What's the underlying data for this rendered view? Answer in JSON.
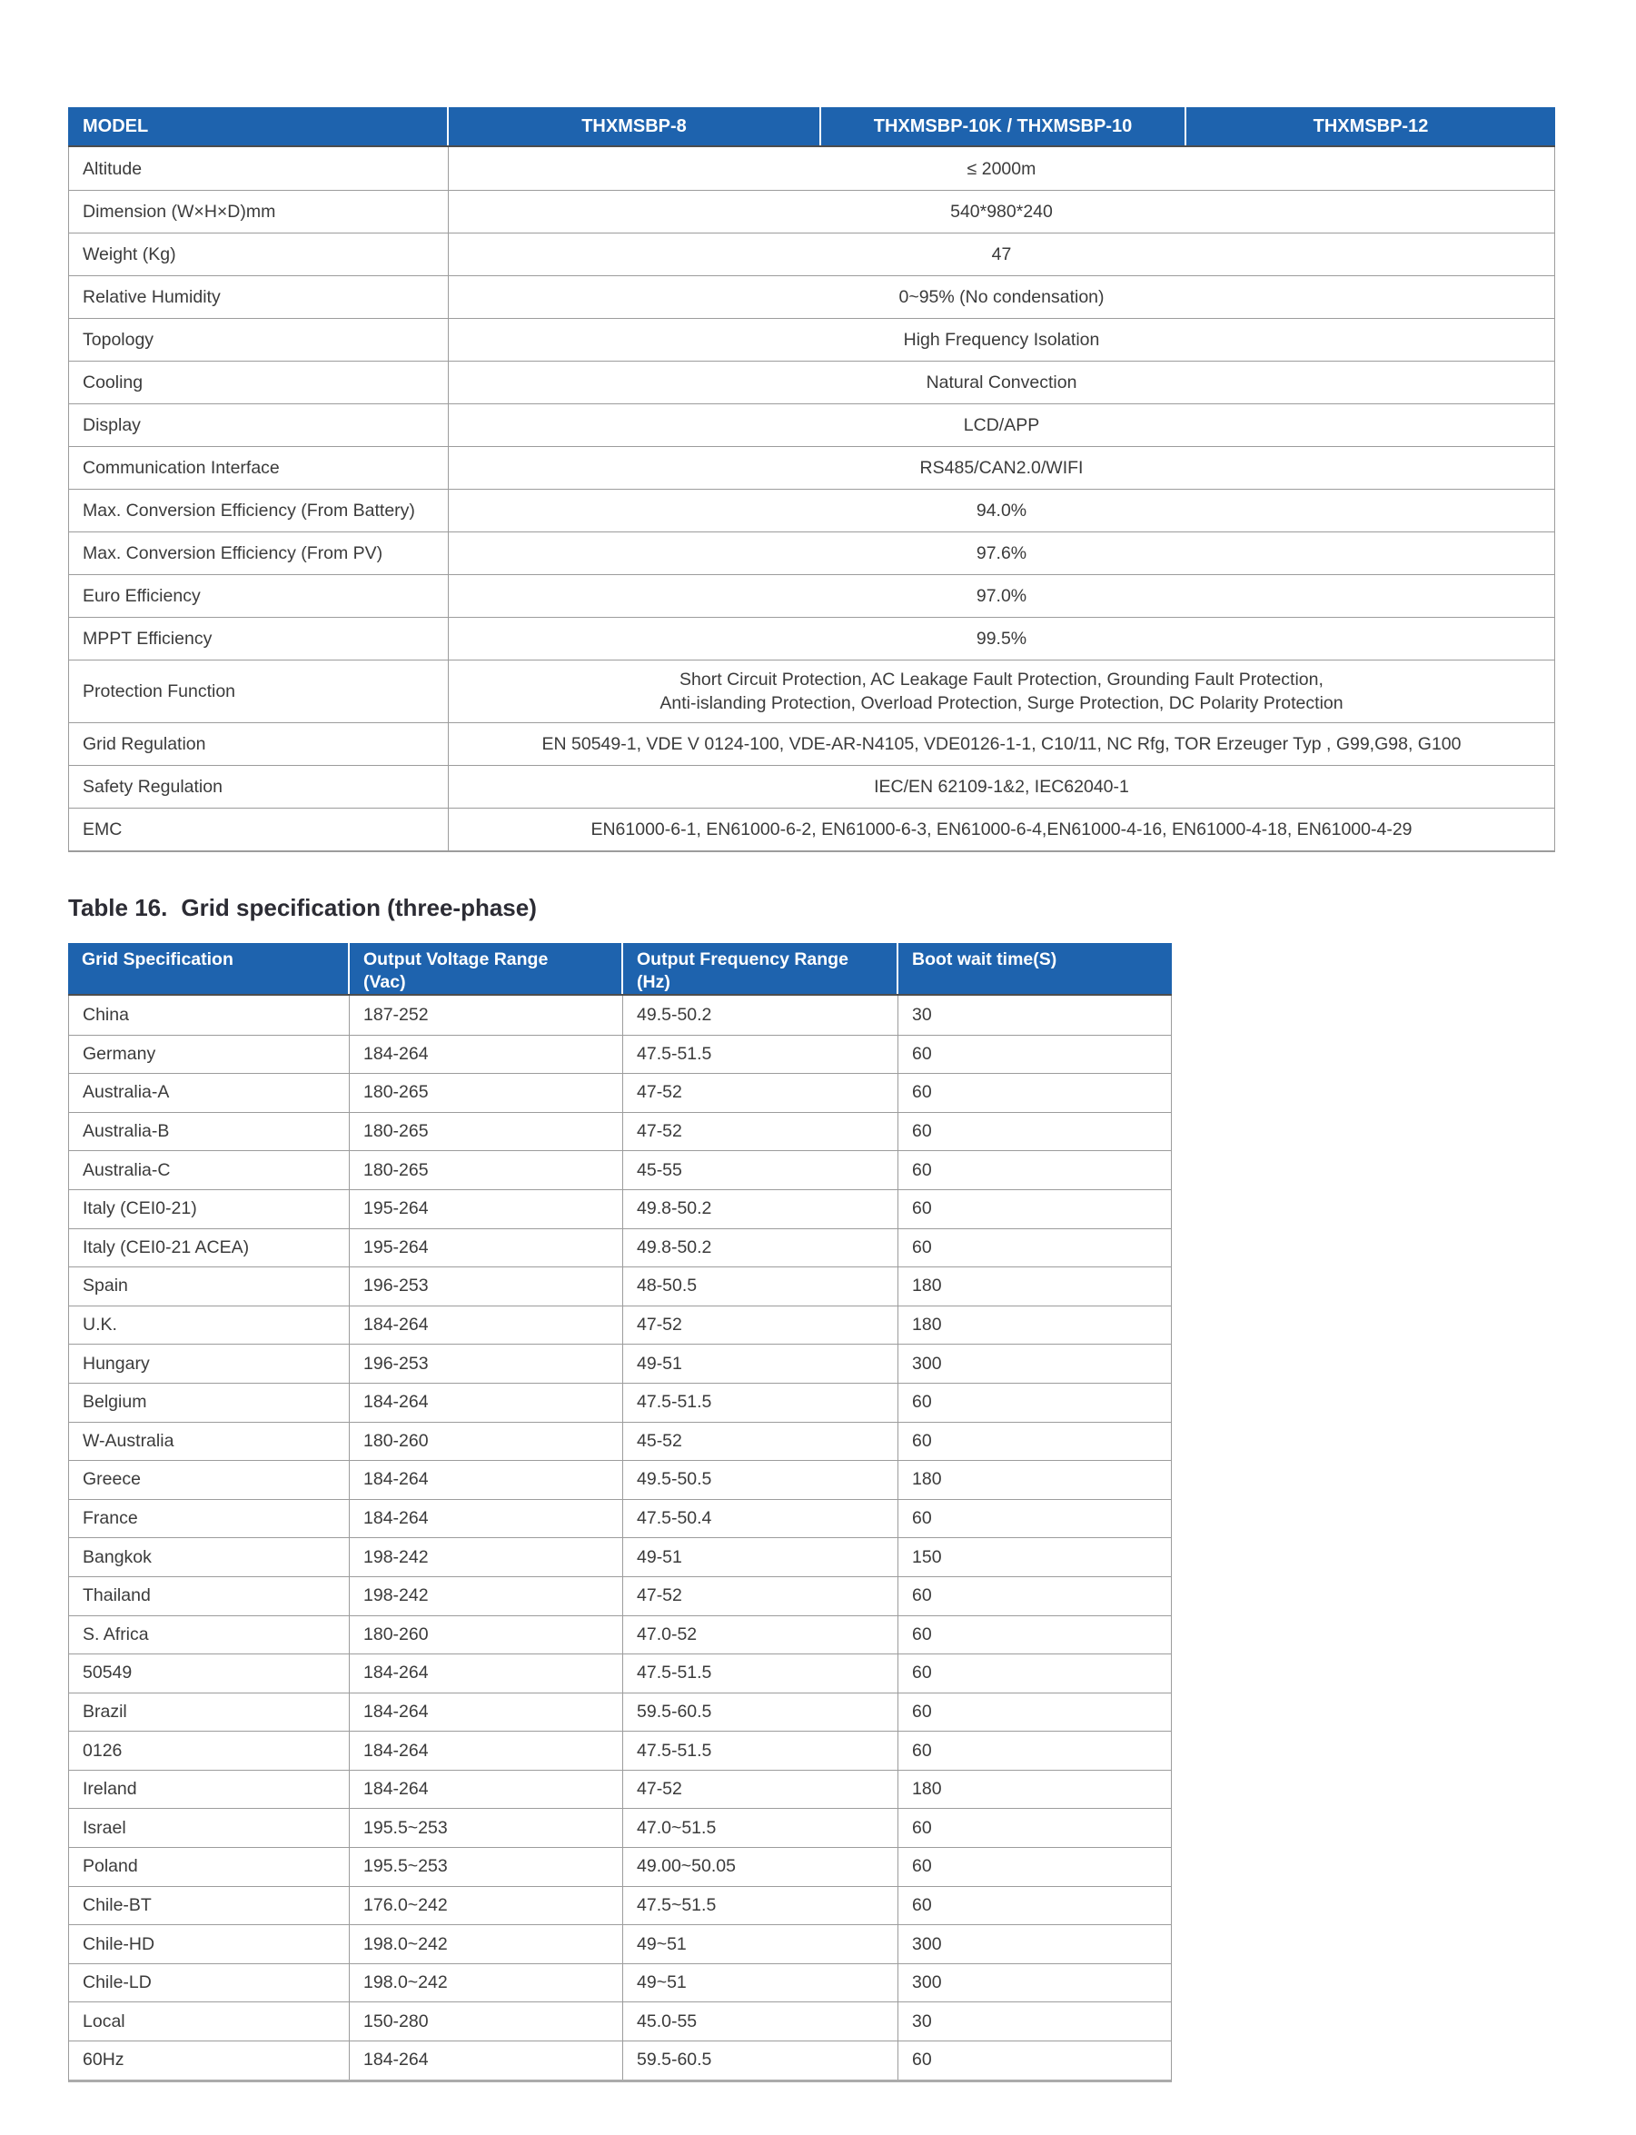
{
  "spec_table": {
    "headers": [
      "MODEL",
      "THXMSBP-8",
      "THXMSBP-10K / THXMSBP-10",
      "THXMSBP-12"
    ],
    "rows": [
      {
        "label": "Altitude",
        "value": "≤ 2000m"
      },
      {
        "label": "Dimension (W×H×D)mm",
        "value": "540*980*240"
      },
      {
        "label": "Weight (Kg)",
        "value": "47"
      },
      {
        "label": "Relative Humidity",
        "value": "0~95% (No condensation)"
      },
      {
        "label": "Topology",
        "value": "High Frequency Isolation"
      },
      {
        "label": "Cooling",
        "value": "Natural Convection"
      },
      {
        "label": "Display",
        "value": "LCD/APP"
      },
      {
        "label": "Communication Interface",
        "value": "RS485/CAN2.0/WIFI"
      },
      {
        "label": "Max. Conversion Efficiency (From Battery)",
        "value": "94.0%"
      },
      {
        "label": "Max. Conversion Efficiency (From PV)",
        "value": "97.6%"
      },
      {
        "label": "Euro Efficiency",
        "value": "97.0%"
      },
      {
        "label": "MPPT Efficiency",
        "value": "99.5%"
      },
      {
        "label": "Protection Function",
        "value": "Short Circuit Protection, AC Leakage Fault Protection, Grounding Fault Protection,\nAnti-islanding Protection, Overload Protection, Surge Protection, DC Polarity Protection"
      },
      {
        "label": "Grid Regulation",
        "value": "EN 50549-1, VDE V 0124-100, VDE-AR-N4105, VDE0126-1-1, C10/11, NC Rfg, TOR Erzeuger Typ , G99,G98, G100"
      },
      {
        "label": "Safety Regulation",
        "value": "IEC/EN 62109-1&2, IEC62040-1"
      },
      {
        "label": "EMC",
        "value": "EN61000-6-1, EN61000-6-2, EN61000-6-3, EN61000-6-4,EN61000-4-16, EN61000-4-18, EN61000-4-29"
      }
    ]
  },
  "grid_table": {
    "caption_label": "Table 16.",
    "caption_title": "Grid specification (three-phase)",
    "headers": [
      "Grid Specification",
      "Output Voltage Range\n(Vac)",
      "Output Frequency Range\n(Hz)",
      "Boot wait time(S)"
    ],
    "rows": [
      [
        "China",
        "187-252",
        "49.5-50.2",
        "30"
      ],
      [
        "Germany",
        "184-264",
        "47.5-51.5",
        "60"
      ],
      [
        "Australia-A",
        "180-265",
        "47-52",
        "60"
      ],
      [
        "Australia-B",
        "180-265",
        "47-52",
        "60"
      ],
      [
        "Australia-C",
        "180-265",
        "45-55",
        "60"
      ],
      [
        "Italy (CEI0-21)",
        "195-264",
        "49.8-50.2",
        "60"
      ],
      [
        "Italy (CEI0-21 ACEA)",
        "195-264",
        "49.8-50.2",
        "60"
      ],
      [
        "Spain",
        "196-253",
        "48-50.5",
        "180"
      ],
      [
        "U.K.",
        "184-264",
        "47-52",
        "180"
      ],
      [
        "Hungary",
        "196-253",
        "49-51",
        "300"
      ],
      [
        "Belgium",
        "184-264",
        "47.5-51.5",
        "60"
      ],
      [
        "W-Australia",
        "180-260",
        "45-52",
        "60"
      ],
      [
        "Greece",
        "184-264",
        "49.5-50.5",
        "180"
      ],
      [
        "France",
        "184-264",
        "47.5-50.4",
        "60"
      ],
      [
        "Bangkok",
        "198-242",
        "49-51",
        "150"
      ],
      [
        "Thailand",
        "198-242",
        "47-52",
        "60"
      ],
      [
        "S. Africa",
        "180-260",
        "47.0-52",
        "60"
      ],
      [
        "50549",
        "184-264",
        "47.5-51.5",
        "60"
      ],
      [
        "Brazil",
        "184-264",
        "59.5-60.5",
        "60"
      ],
      [
        "0126",
        "184-264",
        "47.5-51.5",
        "60"
      ],
      [
        "Ireland",
        "184-264",
        "47-52",
        "180"
      ],
      [
        "Israel",
        "195.5~253",
        "47.0~51.5",
        "60"
      ],
      [
        "Poland",
        "195.5~253",
        "49.00~50.05",
        "60"
      ],
      [
        "Chile-BT",
        "176.0~242",
        "47.5~51.5",
        "60"
      ],
      [
        "Chile-HD",
        "198.0~242",
        "49~51",
        "300"
      ],
      [
        "Chile-LD",
        "198.0~242",
        "49~51",
        "300"
      ],
      [
        "Local",
        "150-280",
        "45.0-55",
        "30"
      ],
      [
        "60Hz",
        "184-264",
        "59.5-60.5",
        "60"
      ]
    ]
  }
}
